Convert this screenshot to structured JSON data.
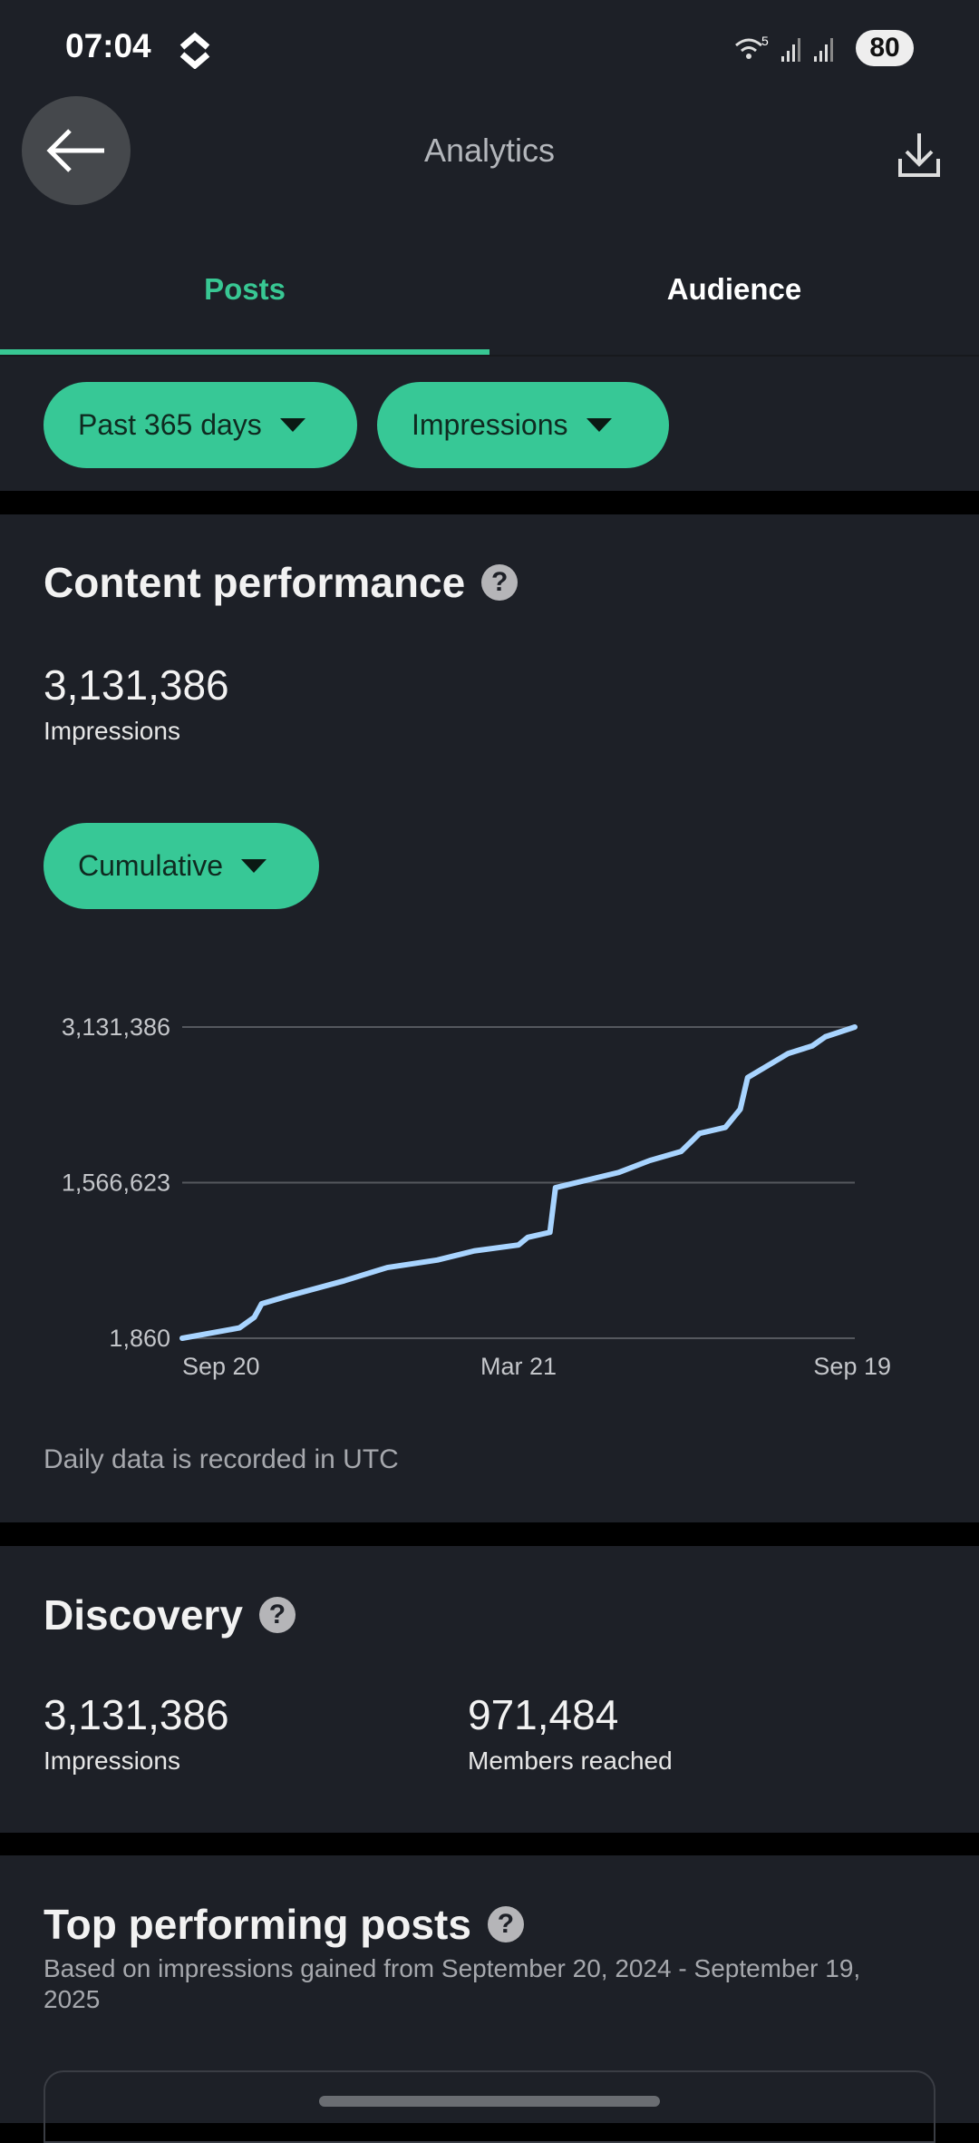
{
  "status_bar": {
    "time": "07:04",
    "battery": "80",
    "wifi_badge": "5"
  },
  "header": {
    "title": "Analytics",
    "back_icon": "arrow-left-icon",
    "download_icon": "download-icon"
  },
  "tabs": [
    {
      "label": "Posts",
      "active": true
    },
    {
      "label": "Audience",
      "active": false
    }
  ],
  "filters": {
    "range": "Past 365 days",
    "metric": "Impressions"
  },
  "accent_color": "#37c896",
  "content_performance": {
    "title": "Content performance",
    "total": "3,131,386",
    "total_label": "Impressions",
    "mode": "Cumulative",
    "footnote": "Daily data is recorded in UTC"
  },
  "chart_data": {
    "type": "line",
    "line_color": "#a8d4ff",
    "grid": true,
    "y_ticks": [
      "1,860",
      "1,566,623",
      "3,131,386"
    ],
    "ylim": [
      1860,
      3131386
    ],
    "x_ticks": [
      "Sep 20",
      "Mar 21",
      "Sep 19"
    ],
    "xlim": [
      "2024-09-20",
      "2025-09-19"
    ],
    "points": [
      [
        "2024-09-20",
        1860
      ],
      [
        "2024-10-21",
        106000
      ],
      [
        "2024-10-29",
        212000
      ],
      [
        "2024-11-02",
        349000
      ],
      [
        "2024-11-16",
        425000
      ],
      [
        "2024-12-16",
        576000
      ],
      [
        "2025-01-09",
        713000
      ],
      [
        "2025-02-05",
        788000
      ],
      [
        "2025-02-25",
        880000
      ],
      [
        "2025-03-21",
        940000
      ],
      [
        "2025-03-26",
        1016000
      ],
      [
        "2025-04-07",
        1067000
      ],
      [
        "2025-04-10",
        1516000
      ],
      [
        "2025-05-14",
        1668000
      ],
      [
        "2025-05-31",
        1789000
      ],
      [
        "2025-06-17",
        1880000
      ],
      [
        "2025-06-27",
        2062000
      ],
      [
        "2025-07-11",
        2123000
      ],
      [
        "2025-07-19",
        2305000
      ],
      [
        "2025-07-23",
        2623000
      ],
      [
        "2025-08-14",
        2866000
      ],
      [
        "2025-08-27",
        2942000
      ],
      [
        "2025-09-03",
        3033000
      ],
      [
        "2025-09-19",
        3131386
      ]
    ]
  },
  "discovery": {
    "title": "Discovery",
    "impressions": "3,131,386",
    "impressions_label": "Impressions",
    "members": "971,484",
    "members_label": "Members reached"
  },
  "top_posts": {
    "title": "Top performing posts",
    "subtitle": "Based on impressions gained from September 20, 2024 - September 19, 2025"
  }
}
